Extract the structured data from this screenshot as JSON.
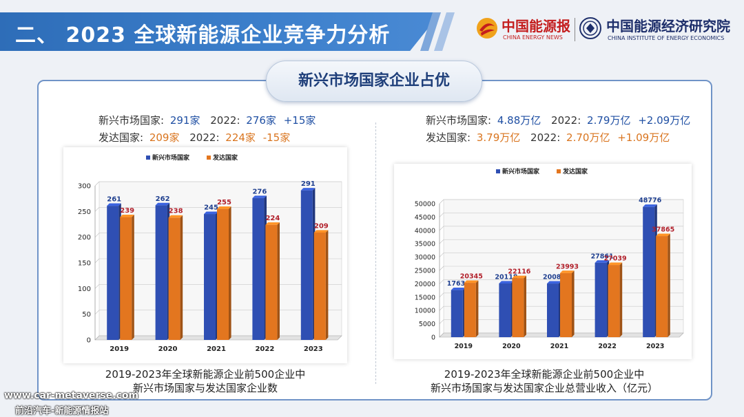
{
  "header": {
    "title": "二、  2023 全球新能源企业竞争力分析",
    "logo_left": {
      "cn": "中国能源报",
      "en": "CHINA ENERGY NEWS"
    },
    "logo_right": {
      "cn": "中国能源经济研究院",
      "en": "CHINA INSTITUTE OF ENERGY ECONOMICS"
    }
  },
  "subtitle": "新兴市场国家企业占优",
  "left_stats": {
    "line1": {
      "label": "新兴市场国家:",
      "value": "291家",
      "prev_label": "2022:",
      "prev_value": "276家",
      "delta": "+15家"
    },
    "line2": {
      "label": "发达国家:",
      "value": "209家",
      "prev_label": "2022:",
      "prev_value": "224家",
      "delta": "-15家"
    }
  },
  "right_stats": {
    "line1": {
      "label": "新兴市场国家:",
      "value": "4.88万亿",
      "prev_label": "2022:",
      "prev_value": "2.79万亿",
      "delta": "+2.09万亿"
    },
    "line2": {
      "label": "发达国家:",
      "value": "3.79万亿",
      "prev_label": "2022:",
      "prev_value": "2.70万亿",
      "delta": "+1.09万亿"
    }
  },
  "chart_data": [
    {
      "type": "bar",
      "categories": [
        "2019",
        "2020",
        "2021",
        "2022",
        "2023"
      ],
      "series": [
        {
          "name": "新兴市场国家",
          "values": [
            261,
            262,
            245,
            276,
            291
          ],
          "color": "#2f4fb3"
        },
        {
          "name": "发达国家",
          "values": [
            239,
            238,
            255,
            224,
            209
          ],
          "color": "#e3761f"
        }
      ],
      "yticks": [
        0,
        50,
        100,
        150,
        200,
        250,
        300
      ],
      "ylim": [
        0,
        300
      ],
      "legend": "top",
      "grid": true,
      "caption_lines": [
        "2019-2023年全球新能源企业前500企业中",
        "新兴市场国家与发达国家企业数"
      ]
    },
    {
      "type": "bar",
      "categories": [
        "2019",
        "2020",
        "2021",
        "2022",
        "2023"
      ],
      "series": [
        {
          "name": "新兴市场国家",
          "values": [
            17630,
            20118,
            20085,
            27861,
            48776
          ],
          "color": "#2f4fb3"
        },
        {
          "name": "发达国家",
          "values": [
            20345,
            22116,
            23993,
            27039,
            37865
          ],
          "color": "#e3761f"
        }
      ],
      "yticks": [
        0,
        5000,
        10000,
        15000,
        20000,
        25000,
        30000,
        35000,
        40000,
        45000,
        50000
      ],
      "ylim": [
        0,
        50000
      ],
      "legend": "top",
      "grid": true,
      "caption_lines": [
        "2019-2023年全球新能源企业前500企业中",
        "新兴市场国家与发达国家企业总营业收入（亿元）"
      ]
    }
  ],
  "watermark": {
    "line1": "www.car-metaverse.com",
    "line2": "前沿汽车-新能源情报站"
  }
}
